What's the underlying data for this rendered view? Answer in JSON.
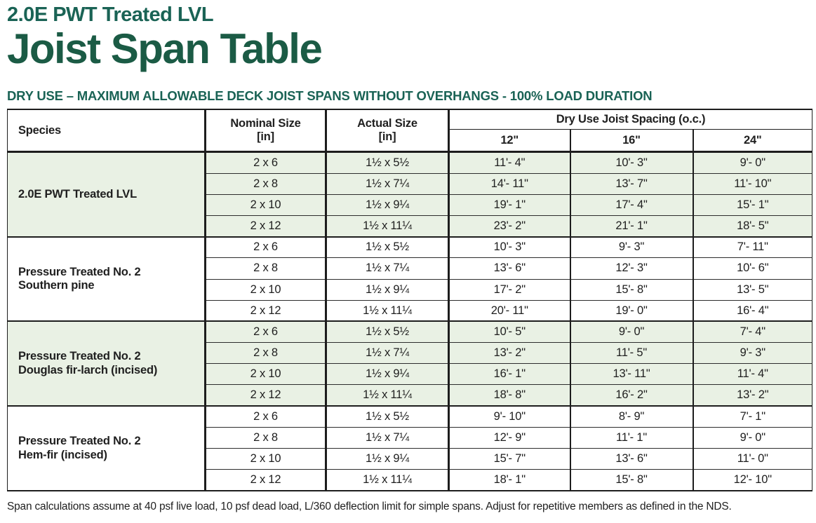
{
  "page": {
    "title_small": "2.0E PWT Treated LVL",
    "title_large": "Joist Span Table",
    "banner": "DRY USE – MAXIMUM ALLOWABLE DECK JOIST SPANS WITHOUT OVERHANGS - 100% LOAD DURATION",
    "footnote": "Span calculations assume at 40 psf live load, 10 psf dead load, L/360 deflection limit for simple spans. Adjust for repetitive members as defined in the NDS."
  },
  "colors": {
    "title_green": "#1b5b45",
    "banner_green": "#1a6355",
    "row_shade": "#e9f1e4",
    "border_dark": "#1d1d1d"
  },
  "table": {
    "headers": {
      "species": "Species",
      "nominal": "Nominal Size\n[in]",
      "actual": "Actual Size\n[in]",
      "spacing_group": "Dry Use Joist Spacing (o.c.)",
      "spacing_cols": [
        "12\"",
        "16\"",
        "24\""
      ]
    },
    "groups": [
      {
        "species": "2.0E PWT Treated LVL",
        "shaded": true,
        "rows": [
          {
            "nominal": "2 x 6",
            "actual": "1½ x 5½",
            "spans": [
              "11'- 4\"",
              "10'- 3\"",
              "9'- 0\""
            ]
          },
          {
            "nominal": "2 x 8",
            "actual": "1½ x 7¼",
            "spans": [
              "14'- 11\"",
              "13'- 7\"",
              "11'- 10\""
            ]
          },
          {
            "nominal": "2 x 10",
            "actual": "1½ x 9¼",
            "spans": [
              "19'- 1\"",
              "17'- 4\"",
              "15'- 1\""
            ]
          },
          {
            "nominal": "2 x 12",
            "actual": "1½ x 11¼",
            "spans": [
              "23'- 2\"",
              "21'- 1\"",
              "18'- 5\""
            ]
          }
        ]
      },
      {
        "species": "Pressure Treated No. 2\nSouthern pine",
        "shaded": false,
        "rows": [
          {
            "nominal": "2 x 6",
            "actual": "1½ x 5½",
            "spans": [
              "10'- 3\"",
              "9'- 3\"",
              "7'- 11\""
            ]
          },
          {
            "nominal": "2 x 8",
            "actual": "1½ x 7¼",
            "spans": [
              "13'- 6\"",
              "12'- 3\"",
              "10'- 6\""
            ]
          },
          {
            "nominal": "2 x 10",
            "actual": "1½ x 9¼",
            "spans": [
              "17'- 2\"",
              "15'- 8\"",
              "13'- 5\""
            ]
          },
          {
            "nominal": "2 x 12",
            "actual": "1½ x 11¼",
            "spans": [
              "20'- 11\"",
              "19'- 0\"",
              "16'- 4\""
            ]
          }
        ]
      },
      {
        "species": "Pressure Treated No. 2\nDouglas fir-larch (incised)",
        "shaded": true,
        "rows": [
          {
            "nominal": "2 x 6",
            "actual": "1½ x 5½",
            "spans": [
              "10'- 5\"",
              "9'- 0\"",
              "7'- 4\""
            ]
          },
          {
            "nominal": "2 x 8",
            "actual": "1½ x 7¼",
            "spans": [
              "13'- 2\"",
              "11'- 5\"",
              "9'- 3\""
            ]
          },
          {
            "nominal": "2 x 10",
            "actual": "1½ x 9¼",
            "spans": [
              "16'- 1\"",
              "13'- 11\"",
              "11'- 4\""
            ]
          },
          {
            "nominal": "2 x 12",
            "actual": "1½ x 11¼",
            "spans": [
              "18'- 8\"",
              "16'- 2\"",
              "13'- 2\""
            ]
          }
        ]
      },
      {
        "species": "Pressure Treated No. 2\nHem-fir (incised)",
        "shaded": false,
        "rows": [
          {
            "nominal": "2 x 6",
            "actual": "1½ x 5½",
            "spans": [
              "9'- 10\"",
              "8'- 9\"",
              "7'- 1\""
            ]
          },
          {
            "nominal": "2 x 8",
            "actual": "1½ x 7¼",
            "spans": [
              "12'- 9\"",
              "11'- 1\"",
              "9'- 0\""
            ]
          },
          {
            "nominal": "2 x 10",
            "actual": "1½ x 9¼",
            "spans": [
              "15'- 7\"",
              "13'- 6\"",
              "11'- 0\""
            ]
          },
          {
            "nominal": "2 x 12",
            "actual": "1½ x 11¼",
            "spans": [
              "18'- 1\"",
              "15'- 8\"",
              "12'- 10\""
            ]
          }
        ]
      }
    ]
  }
}
